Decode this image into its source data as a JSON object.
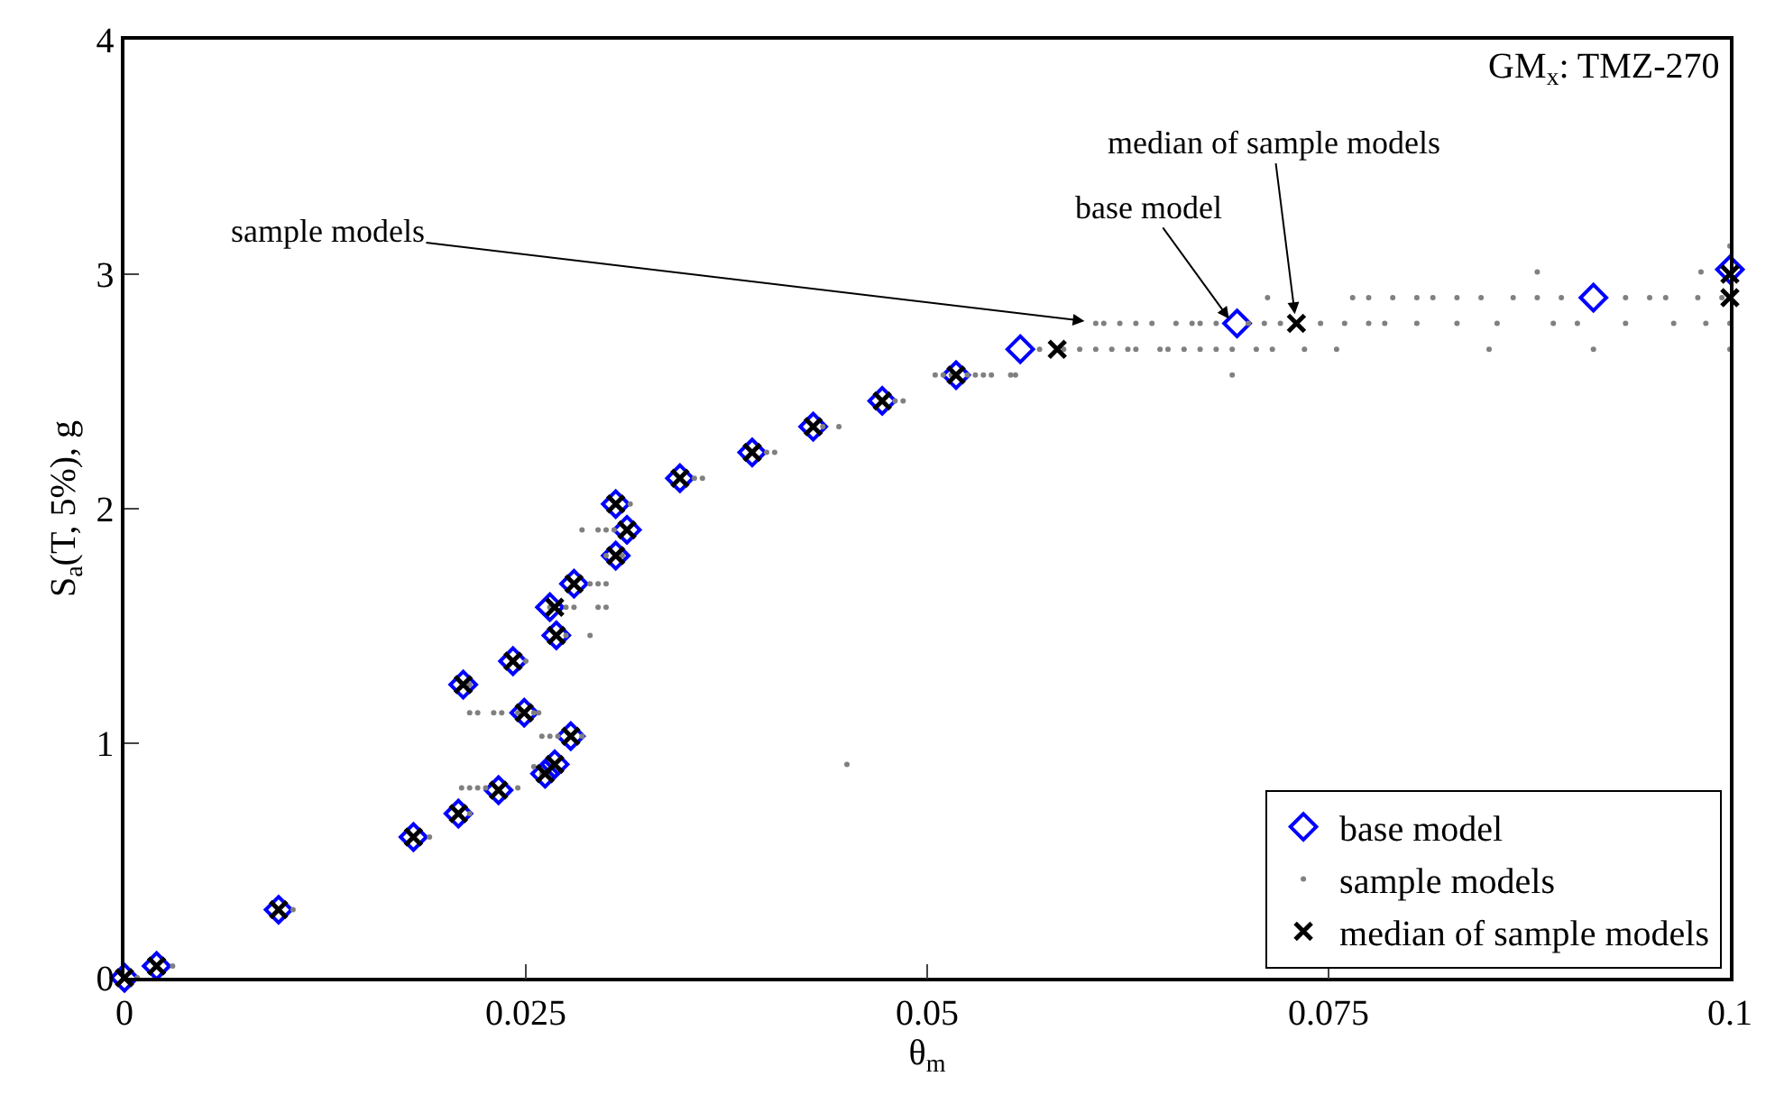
{
  "chart_data": {
    "type": "scatter",
    "xlabel": "θ$_{m}$",
    "ylabel": "S$_{a}$(T, 5%), g",
    "xlim": [
      0,
      0.1
    ],
    "xticks": [
      0,
      0.025,
      0.05,
      0.075,
      0.1
    ],
    "ylim": [
      0,
      4
    ],
    "yticks": [
      0,
      1,
      2,
      3,
      4
    ],
    "legend": "bottom right",
    "annotations": [
      "GM$_{x}$: TMZ-270",
      {
        "text": "sample models",
        "x": 0.0598,
        "y": 2.8
      },
      {
        "text": "base model",
        "x": 0.0688,
        "y": 2.81
      },
      {
        "text": "median of sample models",
        "x": 0.0729,
        "y": 2.83
      }
    ],
    "series": [
      {
        "name": "base model",
        "color": "#0000ff",
        "marker": "diamond",
        "x": [
          0,
          0.002,
          0.0096,
          0.018,
          0.0208,
          0.0233,
          0.0262,
          0.0268,
          0.0278,
          0.0249,
          0.0211,
          0.0242,
          0.0269,
          0.0265,
          0.028,
          0.0306,
          0.0313,
          0.0306,
          0.0346,
          0.0391,
          0.0429,
          0.0472,
          0.0518,
          0.0558,
          0.0693,
          0.0915,
          0.1
        ],
        "values": [
          0,
          0.05,
          0.29,
          0.6,
          0.7,
          0.8,
          0.87,
          0.91,
          1.03,
          1.13,
          1.25,
          1.35,
          1.46,
          1.58,
          1.68,
          1.8,
          1.91,
          2.02,
          2.13,
          2.24,
          2.35,
          2.46,
          2.57,
          2.68,
          2.79,
          2.9,
          3.02
        ]
      },
      {
        "name": "sample models",
        "color": "#808080",
        "marker": "circle",
        "x": [
          0.0008,
          0.003,
          0.0105,
          0.019,
          0.0215,
          0.021,
          0.0215,
          0.022,
          0.0225,
          0.0245,
          0.026,
          0.0255,
          0.026,
          0.0265,
          0.027,
          0.0285,
          0.0215,
          0.022,
          0.023,
          0.0235,
          0.0245,
          0.0255,
          0.0258,
          0.0215,
          0.025,
          0.0275,
          0.029,
          0.0265,
          0.0275,
          0.028,
          0.0295,
          0.03,
          0.029,
          0.0295,
          0.03,
          0.03,
          0.031,
          0.0285,
          0.0295,
          0.03,
          0.0305,
          0.0315,
          0.0355,
          0.036,
          0.04,
          0.0405,
          0.0435,
          0.0445,
          0.048,
          0.0485,
          0.0505,
          0.051,
          0.0515,
          0.0525,
          0.053,
          0.0535,
          0.054,
          0.0552,
          0.0555,
          0.069,
          0.045,
          0.057,
          0.0585,
          0.0595,
          0.0605,
          0.0615,
          0.0625,
          0.063,
          0.0645,
          0.065,
          0.066,
          0.067,
          0.068,
          0.069,
          0.0705,
          0.0715,
          0.0735,
          0.0755,
          0.085,
          0.0915,
          0.1,
          0.0605,
          0.061,
          0.062,
          0.063,
          0.064,
          0.0655,
          0.0665,
          0.067,
          0.068,
          0.07,
          0.071,
          0.072,
          0.0745,
          0.076,
          0.0775,
          0.0785,
          0.0805,
          0.083,
          0.0855,
          0.089,
          0.0905,
          0.0935,
          0.0965,
          0.0985,
          0.1,
          0.0712,
          0.0765,
          0.0775,
          0.079,
          0.0805,
          0.0815,
          0.083,
          0.0845,
          0.0865,
          0.088,
          0.0895,
          0.0935,
          0.095,
          0.096,
          0.098,
          0.0995,
          0.088,
          0.0982,
          0.1
        ],
        "values": [
          0,
          0.05,
          0.29,
          0.6,
          0.7,
          0.81,
          0.81,
          0.81,
          0.81,
          0.81,
          0.87,
          0.9,
          1.03,
          1.03,
          1.03,
          1.03,
          1.13,
          1.13,
          1.13,
          1.13,
          1.13,
          1.13,
          1.13,
          1.25,
          1.35,
          1.46,
          1.46,
          1.58,
          1.58,
          1.58,
          1.58,
          1.58,
          1.68,
          1.68,
          1.68,
          1.8,
          1.8,
          1.91,
          1.91,
          1.91,
          1.91,
          2.02,
          2.13,
          2.13,
          2.24,
          2.24,
          2.35,
          2.35,
          2.46,
          2.46,
          2.57,
          2.57,
          2.57,
          2.57,
          2.57,
          2.57,
          2.57,
          2.57,
          2.57,
          2.57,
          0.91,
          2.68,
          2.68,
          2.68,
          2.68,
          2.68,
          2.68,
          2.68,
          2.68,
          2.68,
          2.68,
          2.68,
          2.68,
          2.68,
          2.68,
          2.68,
          2.68,
          2.68,
          2.68,
          2.68,
          2.68,
          2.79,
          2.79,
          2.79,
          2.79,
          2.79,
          2.79,
          2.79,
          2.79,
          2.79,
          2.79,
          2.79,
          2.79,
          2.79,
          2.79,
          2.79,
          2.79,
          2.79,
          2.79,
          2.79,
          2.79,
          2.79,
          2.79,
          2.79,
          2.79,
          2.79,
          2.9,
          2.9,
          2.9,
          2.9,
          2.9,
          2.9,
          2.9,
          2.9,
          2.9,
          2.9,
          2.9,
          2.9,
          2.9,
          2.9,
          2.9,
          2.9,
          3.01,
          3.01,
          3.12
        ]
      },
      {
        "name": "median of sample models",
        "color": "#000000",
        "marker": "cross",
        "x": [
          0,
          0.002,
          0.0096,
          0.018,
          0.0208,
          0.0233,
          0.0262,
          0.0268,
          0.0278,
          0.0249,
          0.0211,
          0.0242,
          0.0269,
          0.0268,
          0.028,
          0.0306,
          0.0313,
          0.0306,
          0.0346,
          0.0391,
          0.0429,
          0.0472,
          0.0518,
          0.0581,
          0.073,
          0.1,
          0.1
        ],
        "values": [
          0,
          0.05,
          0.29,
          0.6,
          0.7,
          0.8,
          0.87,
          0.91,
          1.03,
          1.13,
          1.25,
          1.35,
          1.46,
          1.58,
          1.68,
          1.8,
          1.91,
          2.02,
          2.13,
          2.24,
          2.35,
          2.46,
          2.57,
          2.68,
          2.79,
          2.9,
          3.0
        ]
      }
    ]
  }
}
